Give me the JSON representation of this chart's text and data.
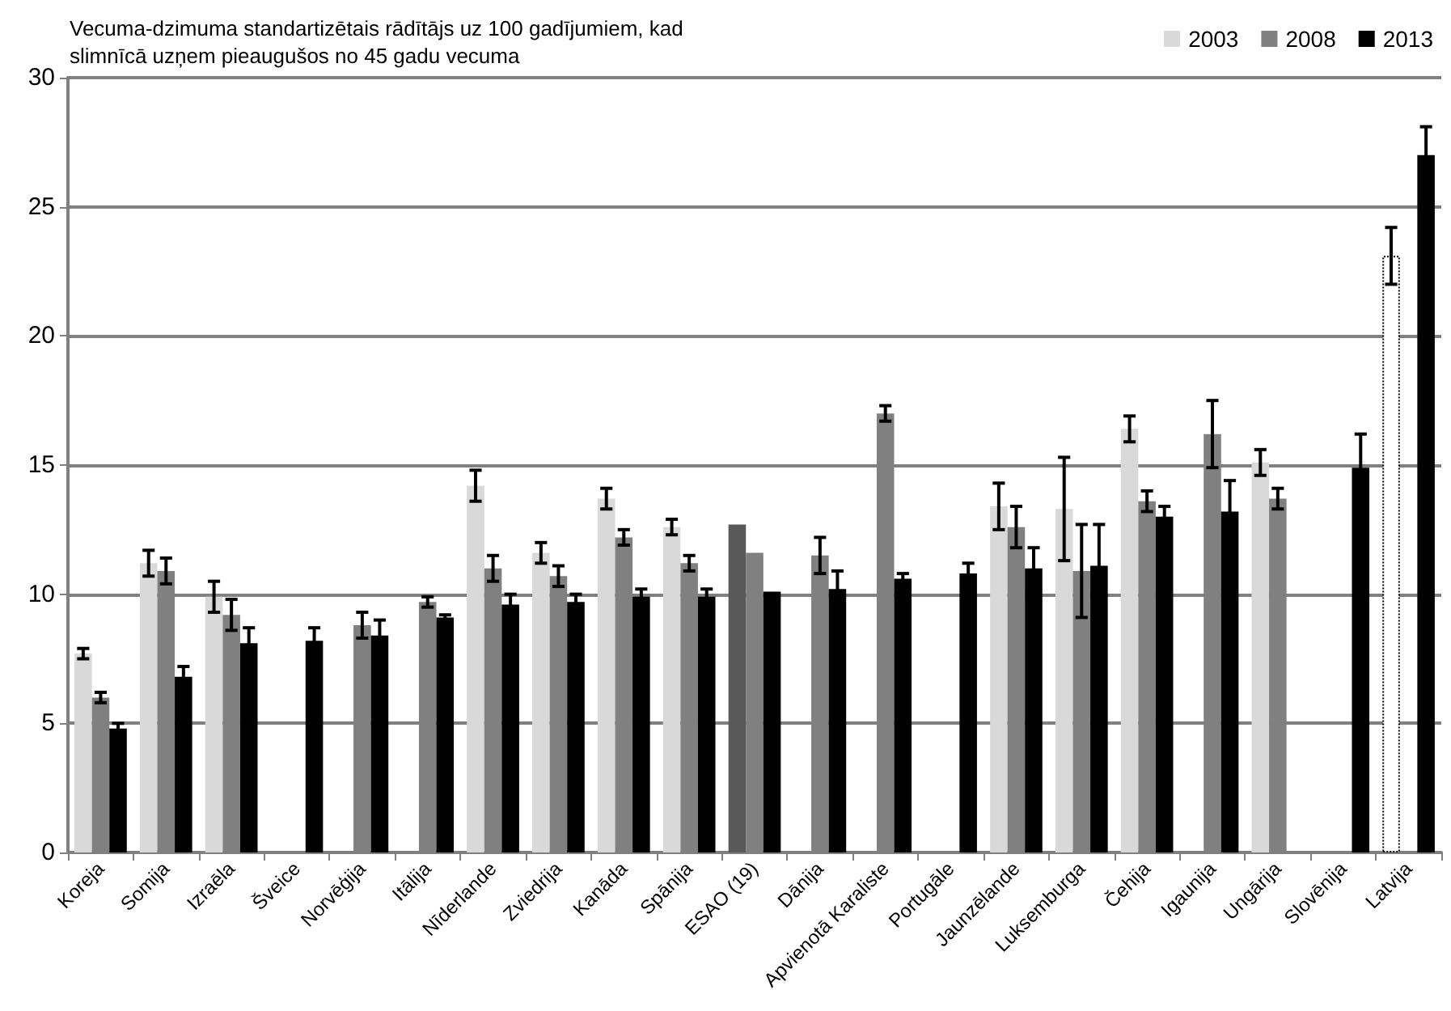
{
  "chart_data": {
    "type": "bar",
    "title": "Vecuma-dzimuma standartizētais rādītājs uz 100 gadījumiem, kad slimnīcā uzņem pieaugušos no 45 gadu vecuma",
    "categories": [
      "Koreja",
      "Somija",
      "Izraēla",
      "Šveice",
      "Norvēģija",
      "Itālija",
      "Nīderlande",
      "Zviedrija",
      "Kanāda",
      "Spānija",
      "ESAO (19)",
      "Dānija",
      "Apvienotā Karaliste",
      "Portugāle",
      "Jaunzēlande",
      "Luksemburga",
      "Čehija",
      "Igaunija",
      "Ungārija",
      "Slovēnija",
      "Latvija"
    ],
    "series": [
      {
        "name": "2003",
        "color": "#d9d9d9",
        "colors": [
          "#d9d9d9",
          "#d9d9d9",
          "#d9d9d9",
          "#d9d9d9",
          "#d9d9d9",
          "#d9d9d9",
          "#d9d9d9",
          "#d9d9d9",
          "#d9d9d9",
          "#d9d9d9",
          "#595959",
          "#d9d9d9",
          "#d9d9d9",
          "#d9d9d9",
          "#d9d9d9",
          "#d9d9d9",
          "#d9d9d9",
          "#d9d9d9",
          "#d9d9d9",
          "#d9d9d9",
          "#ffffff"
        ],
        "values": [
          7.7,
          11.2,
          9.9,
          null,
          null,
          null,
          14.2,
          11.6,
          13.7,
          12.6,
          12.7,
          null,
          null,
          null,
          13.4,
          13.3,
          16.4,
          null,
          15.1,
          null,
          23.1
        ],
        "errors": [
          0.2,
          0.5,
          0.6,
          null,
          null,
          null,
          0.6,
          0.4,
          0.4,
          0.3,
          null,
          null,
          null,
          null,
          0.9,
          2.0,
          0.5,
          null,
          0.5,
          null,
          1.1
        ]
      },
      {
        "name": "2008",
        "color": "#808080",
        "values": [
          6.0,
          10.9,
          9.2,
          null,
          8.8,
          9.7,
          11.0,
          10.7,
          12.2,
          11.2,
          11.6,
          11.5,
          17.0,
          null,
          12.6,
          10.9,
          13.6,
          16.2,
          13.7,
          null,
          null
        ],
        "errors": [
          0.2,
          0.5,
          0.6,
          null,
          0.5,
          0.2,
          0.5,
          0.4,
          0.3,
          0.3,
          null,
          0.7,
          0.3,
          null,
          0.8,
          1.8,
          0.4,
          1.3,
          0.4,
          null,
          null
        ]
      },
      {
        "name": "2013",
        "color": "#000000",
        "values": [
          4.8,
          6.8,
          8.1,
          8.2,
          8.4,
          9.1,
          9.6,
          9.7,
          9.9,
          9.9,
          10.1,
          10.2,
          10.6,
          10.8,
          11.0,
          11.1,
          13.0,
          13.2,
          null,
          14.9,
          27.0
        ],
        "errors": [
          0.2,
          0.4,
          0.6,
          0.5,
          0.6,
          0.1,
          0.4,
          0.3,
          0.3,
          0.3,
          null,
          0.7,
          0.2,
          0.4,
          0.8,
          1.6,
          0.4,
          1.2,
          null,
          1.3,
          1.1
        ]
      }
    ],
    "ylim": [
      0,
      30
    ],
    "yticks": [
      0,
      5,
      10,
      15,
      20,
      25,
      30
    ],
    "grid": "y",
    "legend": "top right"
  }
}
